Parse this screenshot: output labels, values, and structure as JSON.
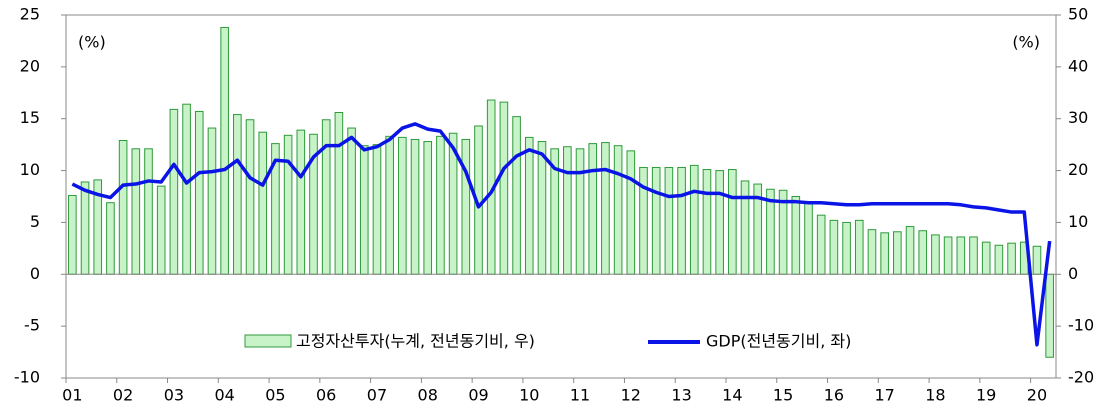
{
  "chart_data": {
    "type": "bar_line",
    "annotations": [
      "(%)",
      "(%)"
    ],
    "categories": [
      "01",
      null,
      null,
      null,
      "02",
      null,
      null,
      null,
      "03",
      null,
      null,
      null,
      "04",
      null,
      null,
      null,
      "05",
      null,
      null,
      null,
      "06",
      null,
      null,
      null,
      "07",
      null,
      null,
      null,
      "08",
      null,
      null,
      null,
      "09",
      null,
      null,
      null,
      "10",
      null,
      null,
      null,
      "11",
      null,
      null,
      null,
      "12",
      null,
      null,
      null,
      "13",
      null,
      null,
      null,
      "14",
      null,
      null,
      null,
      "15",
      null,
      null,
      null,
      "16",
      null,
      null,
      null,
      "17",
      null,
      null,
      null,
      "18",
      null,
      null,
      null,
      "19",
      null,
      null,
      null,
      "20",
      null
    ],
    "series": [
      {
        "name": "고정자산투자(누계, 전년동기비, 우)",
        "type": "bar",
        "axis": "y2",
        "color": "#c8f2c8",
        "edge": "#2f9a3c",
        "values": [
          15.2,
          17.8,
          18.2,
          13.8,
          25.8,
          24.2,
          24.2,
          17.0,
          31.8,
          32.8,
          31.4,
          28.2,
          47.6,
          30.8,
          29.8,
          27.4,
          25.2,
          26.8,
          27.8,
          27.0,
          29.8,
          31.2,
          28.2,
          24.8,
          25.0,
          26.6,
          26.4,
          26.0,
          25.6,
          26.6,
          27.2,
          26.0,
          28.6,
          33.6,
          33.2,
          30.4,
          26.4,
          25.6,
          24.2,
          24.6,
          24.2,
          25.2,
          25.4,
          24.8,
          23.8,
          20.6,
          20.6,
          20.6,
          20.6,
          21.0,
          20.2,
          20.0,
          20.2,
          18.0,
          17.4,
          16.4,
          16.2,
          15.0,
          13.8,
          11.4,
          10.4,
          10.0,
          10.4,
          8.6,
          8.0,
          8.2,
          9.2,
          8.4,
          7.6,
          7.2,
          7.2,
          7.2,
          6.2,
          5.6,
          6.0,
          6.2,
          5.4,
          -16.0
        ]
      },
      {
        "name": "GDP(전년동기비, 좌)",
        "type": "line",
        "color": "#0a14e6",
        "values": [
          8.7,
          8.1,
          7.7,
          7.4,
          8.6,
          8.7,
          9.0,
          8.9,
          10.6,
          8.8,
          9.8,
          9.9,
          10.1,
          11.0,
          9.3,
          8.6,
          11.0,
          10.9,
          9.4,
          11.3,
          12.4,
          12.4,
          13.2,
          12.0,
          12.3,
          13.0,
          14.1,
          14.5,
          14.0,
          13.8,
          12.2,
          9.9,
          6.5,
          7.9,
          10.2,
          11.4,
          12.0,
          11.6,
          10.2,
          9.8,
          9.8,
          10.0,
          10.1,
          9.7,
          9.2,
          8.4,
          7.9,
          7.5,
          7.6,
          8.0,
          7.8,
          7.8,
          7.4,
          7.4,
          7.4,
          7.1,
          7.0,
          7.0,
          6.9,
          6.9,
          6.8,
          6.7,
          6.7,
          6.8,
          6.8,
          6.8,
          6.8,
          6.8,
          6.8,
          6.8,
          6.7,
          6.5,
          6.4,
          6.2,
          6.0,
          6.0,
          -6.8,
          3.2
        ]
      }
    ],
    "ylim": [
      -10,
      25
    ],
    "yticks": [
      -10,
      -5,
      0,
      5,
      10,
      15,
      20,
      25
    ],
    "y2lim": [
      -20,
      50
    ],
    "y2ticks": [
      -20,
      -10,
      0,
      10,
      20,
      30,
      40,
      50
    ]
  }
}
